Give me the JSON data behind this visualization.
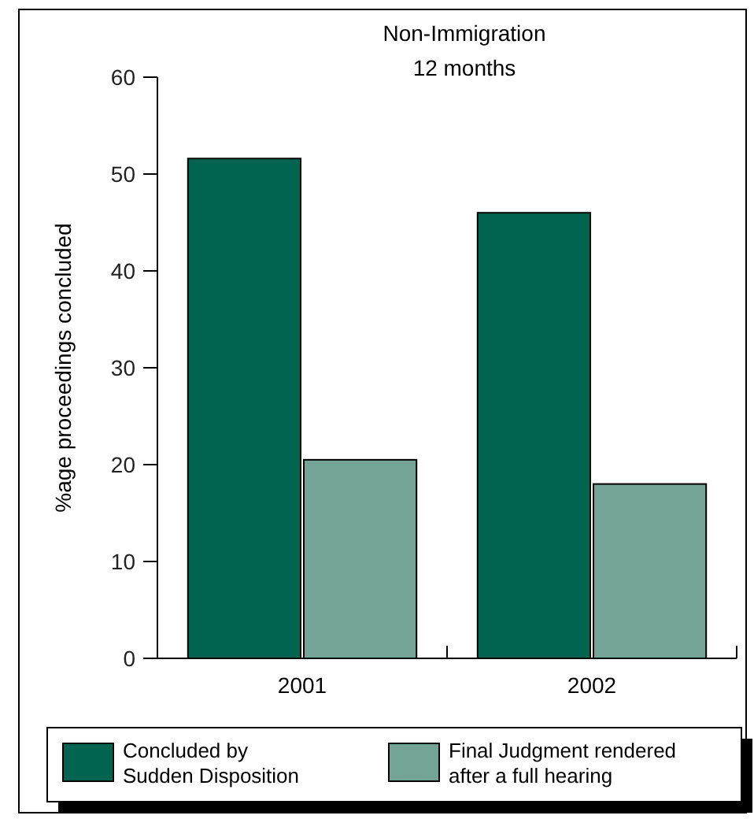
{
  "chart_data": {
    "type": "bar",
    "title": "Non-Immigration\n12 months",
    "ylabel": "%age proceedings concluded",
    "categories": [
      "2001",
      "2002"
    ],
    "series": [
      {
        "name": "Concluded by Sudden Disposition",
        "color": "#006450",
        "values": [
          51.6,
          46.0
        ]
      },
      {
        "name": "Final Judgment rendered after a full hearing",
        "color": "#74a498",
        "values": [
          20.5,
          18.0
        ]
      }
    ],
    "ylim": [
      0,
      60
    ],
    "yticks": [
      0,
      10,
      20,
      30,
      40,
      50,
      60
    ],
    "grid": false,
    "legend": "bottom"
  }
}
